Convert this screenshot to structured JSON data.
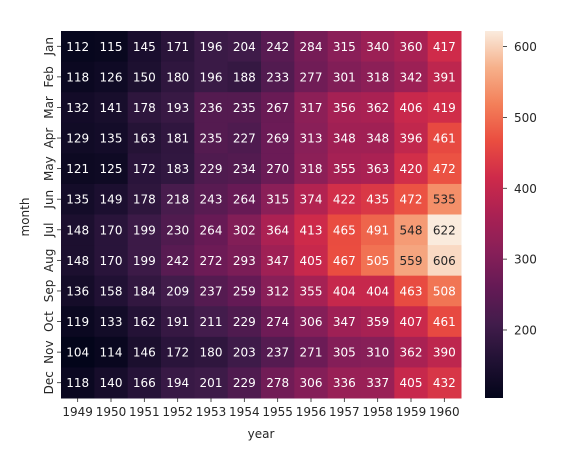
{
  "chart_data": {
    "type": "heatmap",
    "title": "",
    "xlabel": "year",
    "ylabel": "month",
    "x_categories": [
      "1949",
      "1950",
      "1951",
      "1952",
      "1953",
      "1954",
      "1955",
      "1956",
      "1957",
      "1958",
      "1959",
      "1960"
    ],
    "y_categories": [
      "Jan",
      "Feb",
      "Mar",
      "Apr",
      "May",
      "Jun",
      "Jul",
      "Aug",
      "Sep",
      "Oct",
      "Nov",
      "Dec"
    ],
    "values": [
      [
        112,
        115,
        145,
        171,
        196,
        204,
        242,
        284,
        315,
        340,
        360,
        417
      ],
      [
        118,
        126,
        150,
        180,
        196,
        188,
        233,
        277,
        301,
        318,
        342,
        391
      ],
      [
        132,
        141,
        178,
        193,
        236,
        235,
        267,
        317,
        356,
        362,
        406,
        419
      ],
      [
        129,
        135,
        163,
        181,
        235,
        227,
        269,
        313,
        348,
        348,
        396,
        461
      ],
      [
        121,
        125,
        172,
        183,
        229,
        234,
        270,
        318,
        355,
        363,
        420,
        472
      ],
      [
        135,
        149,
        178,
        218,
        243,
        264,
        315,
        374,
        422,
        435,
        472,
        535
      ],
      [
        148,
        170,
        199,
        230,
        264,
        302,
        364,
        413,
        465,
        491,
        548,
        622
      ],
      [
        148,
        170,
        199,
        242,
        272,
        293,
        347,
        405,
        467,
        505,
        559,
        606
      ],
      [
        136,
        158,
        184,
        209,
        237,
        259,
        312,
        355,
        404,
        404,
        463,
        508
      ],
      [
        119,
        133,
        162,
        191,
        211,
        229,
        274,
        306,
        347,
        359,
        407,
        461
      ],
      [
        104,
        114,
        146,
        172,
        180,
        203,
        237,
        271,
        305,
        310,
        362,
        390
      ],
      [
        118,
        140,
        166,
        194,
        201,
        229,
        278,
        306,
        336,
        337,
        405,
        432
      ]
    ],
    "vmin": 104,
    "vmax": 622,
    "colormap": "rocket",
    "annotated": true,
    "colorbar": {
      "ticks": [
        200,
        300,
        400,
        500,
        600
      ],
      "tick_labels": [
        "200",
        "300",
        "400",
        "500",
        "600"
      ]
    },
    "grid": false
  }
}
